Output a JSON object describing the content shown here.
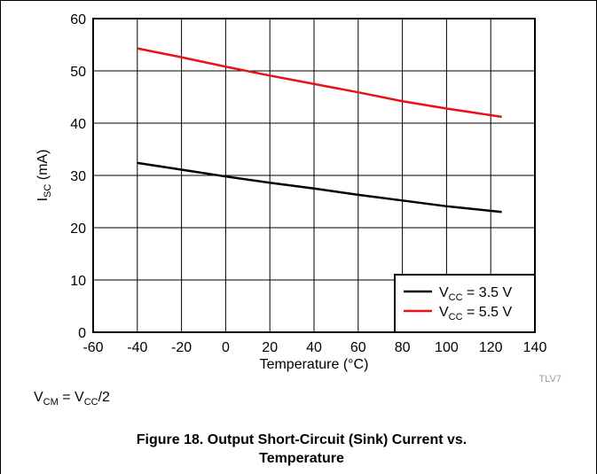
{
  "chart_data": {
    "type": "line",
    "title": "Figure 18. Output Short-Circuit (Sink) Current vs. Temperature",
    "xlabel": "Temperature (°C)",
    "ylabel_main": "I",
    "ylabel_sub": "SC",
    "ylabel_rest": " (mA)",
    "xlim": [
      -60,
      140
    ],
    "ylim": [
      0,
      60
    ],
    "xticks": [
      -60,
      -40,
      -20,
      0,
      20,
      40,
      60,
      80,
      100,
      120,
      140
    ],
    "yticks": [
      0,
      10,
      20,
      30,
      40,
      50,
      60
    ],
    "grid": true,
    "legend_position": "bottom-right",
    "series": [
      {
        "legend_main": "V",
        "legend_sub": "CC",
        "legend_rest": " = 3.5 V",
        "color": "#000000",
        "x": [
          -40,
          -20,
          0,
          20,
          40,
          60,
          80,
          100,
          125
        ],
        "y": [
          32.4,
          31.1,
          29.8,
          28.6,
          27.5,
          26.3,
          25.2,
          24.1,
          23.0
        ]
      },
      {
        "legend_main": "V",
        "legend_sub": "CC",
        "legend_rest": " = 5.5 V",
        "color": "#e8101b",
        "x": [
          -40,
          -20,
          0,
          20,
          40,
          60,
          80,
          100,
          125
        ],
        "y": [
          54.3,
          52.6,
          50.8,
          49.1,
          47.5,
          45.9,
          44.2,
          42.8,
          41.2
        ]
      }
    ]
  },
  "ref_code": "TLV7",
  "note": {
    "a": "V",
    "a_sub": "CM",
    "b": " = V",
    "b_sub": "CC",
    "c": "/2"
  },
  "caption_line1": "Figure 18. Output Short-Circuit (Sink) Current vs.",
  "caption_line2": "Temperature"
}
